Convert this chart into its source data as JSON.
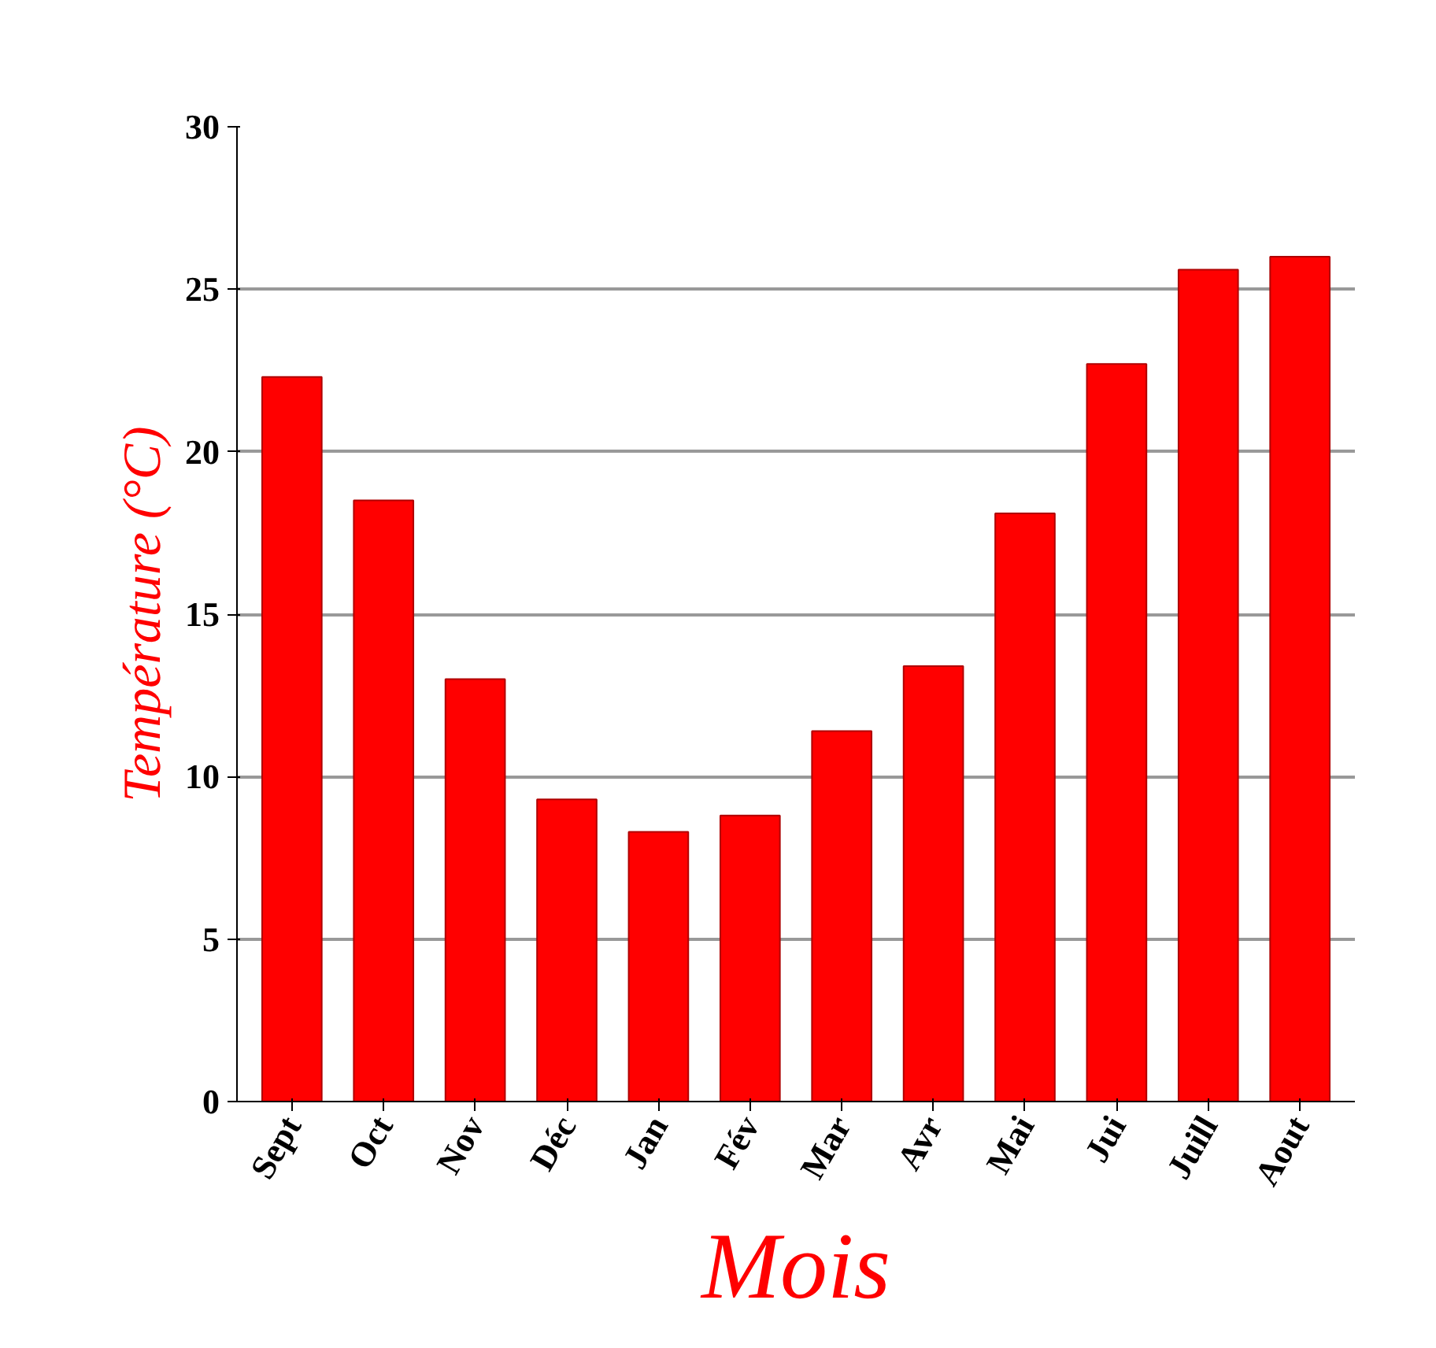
{
  "chart_data": {
    "type": "bar",
    "xlabel": "Mois",
    "ylabel": "Température (°C)",
    "categories": [
      "Sept",
      "Oct",
      "Nov",
      "Déc",
      "Jan",
      "Fév",
      "Mar",
      "Avr",
      "Mai",
      "Jui",
      "Juill",
      "Aout"
    ],
    "values": [
      22.3,
      18.5,
      13.0,
      9.3,
      8.3,
      8.8,
      11.4,
      13.4,
      18.1,
      22.7,
      25.6,
      26.0
    ],
    "color": "#ff0000",
    "ylim": [
      0,
      30
    ],
    "yticks": [
      0,
      5,
      10,
      15,
      20,
      25,
      30
    ],
    "grid": "y"
  }
}
